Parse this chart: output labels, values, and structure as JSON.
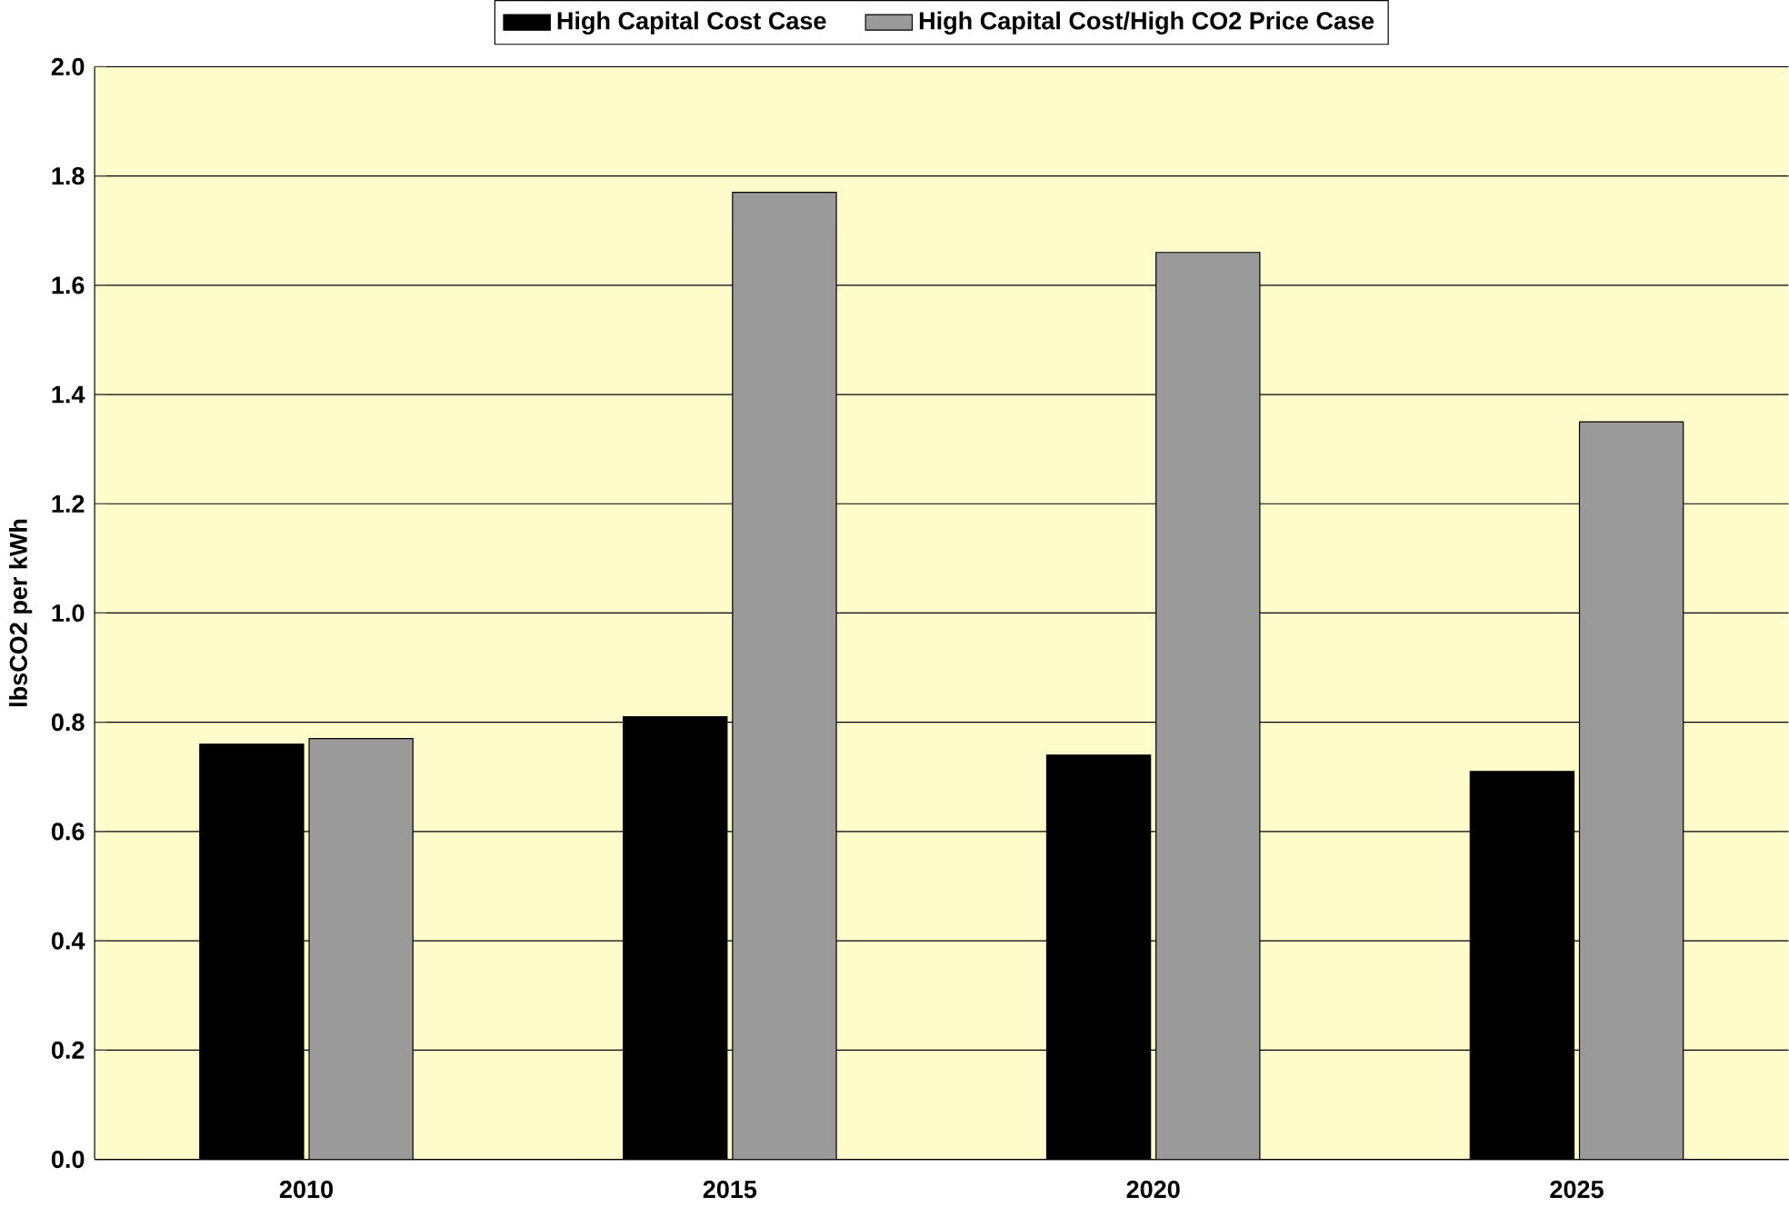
{
  "chart_data": {
    "type": "bar",
    "ylabel": "lbsCO2 per kWh",
    "categories": [
      "2010",
      "2015",
      "2020",
      "2025"
    ],
    "series": [
      {
        "name": "High Capital Cost Case",
        "color": "#000000",
        "values": [
          0.76,
          0.81,
          0.74,
          0.71
        ]
      },
      {
        "name": "High Capital Cost/High CO2 Price Case",
        "color": "#9a9a9a",
        "values": [
          0.77,
          1.77,
          1.66,
          1.35
        ]
      }
    ],
    "ylim": [
      0,
      2
    ],
    "yticks": [
      {
        "value": 0,
        "label": "0.0"
      },
      0.2,
      0.4,
      0.6,
      0.8,
      {
        "value": 1,
        "label": "1.0"
      },
      1.2,
      1.4,
      1.6,
      1.8,
      {
        "value": 2,
        "label": "2.0"
      }
    ],
    "grid": "y",
    "legend": "top"
  }
}
